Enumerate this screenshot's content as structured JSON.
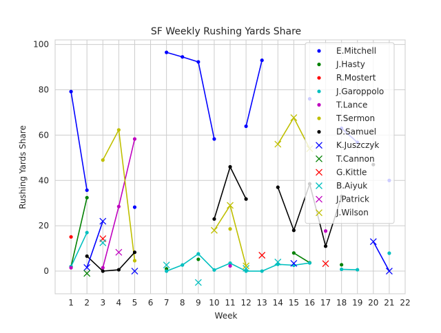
{
  "chart_data": {
    "type": "line",
    "title": "SF Weekly Rushing Yards Share",
    "xlabel": "Week",
    "ylabel": "Rushing Yards Share",
    "xlim": [
      0,
      22
    ],
    "ylim": [
      -10,
      102
    ],
    "xticks": [
      "1",
      "2",
      "3",
      "4",
      "5",
      "6",
      "7",
      "8",
      "9",
      "10",
      "11",
      "12",
      "13",
      "14",
      "15",
      "16",
      "17",
      "18",
      "19",
      "20",
      "21",
      "22"
    ],
    "yticks": [
      "0",
      "20",
      "40",
      "60",
      "80",
      "100"
    ],
    "grid": true,
    "legend_position": "top-right",
    "series": [
      {
        "name": "E.Mitchell",
        "color": "#0000ff",
        "marker": "dot",
        "x": [
          1,
          2,
          5,
          7,
          8,
          9,
          10,
          12,
          13,
          16,
          18,
          19,
          21
        ],
        "y": [
          79.2,
          35.7,
          28.2,
          96.5,
          94.5,
          92.3,
          58.3,
          63.9,
          93,
          76,
          63,
          56.8,
          40
        ]
      },
      {
        "name": "J.Hasty",
        "color": "#008000",
        "marker": "dot",
        "x": [
          1,
          2,
          7,
          9,
          15,
          16,
          18
        ],
        "y": [
          2,
          32.4,
          1,
          5.2,
          8,
          3.7,
          2.8
        ]
      },
      {
        "name": "R.Mostert",
        "color": "#ff0000",
        "marker": "dot",
        "x": [
          1
        ],
        "y": [
          15.1
        ]
      },
      {
        "name": "J.Garoppolo",
        "color": "#00bfbf",
        "marker": "dot",
        "x": [
          1,
          2,
          7,
          8,
          9,
          10,
          11,
          12,
          13,
          14,
          15,
          16,
          18,
          19,
          21
        ],
        "y": [
          2,
          17,
          0,
          2.7,
          7.6,
          0.5,
          3.5,
          0,
          0,
          3,
          2.6,
          3.6,
          0.8,
          0.6,
          7.9
        ]
      },
      {
        "name": "T.Lance",
        "color": "#bf00bf",
        "marker": "dot",
        "x": [
          1,
          3,
          4,
          5,
          11,
          17
        ],
        "y": [
          1.5,
          1.5,
          28.5,
          58.3,
          2.3,
          17.7
        ]
      },
      {
        "name": "T.Sermon",
        "color": "#bfbf00",
        "marker": "dot",
        "x": [
          3,
          4,
          5,
          11
        ],
        "y": [
          49,
          62.3,
          4.6,
          18.6
        ]
      },
      {
        "name": "D.Samuel",
        "color": "#000000",
        "marker": "dot",
        "x": [
          2,
          3,
          4,
          5,
          10,
          11,
          12,
          14,
          15,
          16,
          17,
          18,
          20
        ],
        "y": [
          6.6,
          0,
          0.6,
          8.3,
          23,
          46,
          31.8,
          37,
          18,
          38.5,
          11,
          33,
          47
        ]
      },
      {
        "name": "K.Juszczyk",
        "color": "#0000ff",
        "marker": "x",
        "x": [
          2,
          3,
          5,
          15,
          20,
          21
        ],
        "y": [
          1.6,
          22,
          0,
          3.4,
          13,
          0
        ]
      },
      {
        "name": "T.Cannon",
        "color": "#008000",
        "marker": "x",
        "x": [
          2
        ],
        "y": [
          -1
        ]
      },
      {
        "name": "G.Kittle",
        "color": "#ff0000",
        "marker": "x",
        "x": [
          3,
          13,
          17
        ],
        "y": [
          14.3,
          7,
          3.3
        ]
      },
      {
        "name": "B.Aiyuk",
        "color": "#00bfbf",
        "marker": "x",
        "x": [
          3,
          7,
          9,
          12,
          14
        ],
        "y": [
          12.5,
          2.7,
          -5,
          1.2,
          4
        ]
      },
      {
        "name": "J.Patrick",
        "color": "#bf00bf",
        "marker": "x",
        "x": [
          4
        ],
        "y": [
          8.3
        ]
      },
      {
        "name": "J.Wilson",
        "color": "#bfbf00",
        "marker": "x",
        "x": [
          10,
          11,
          12,
          14,
          15,
          16
        ],
        "y": [
          18,
          29,
          2.3,
          56,
          67.7,
          54
        ]
      }
    ]
  }
}
